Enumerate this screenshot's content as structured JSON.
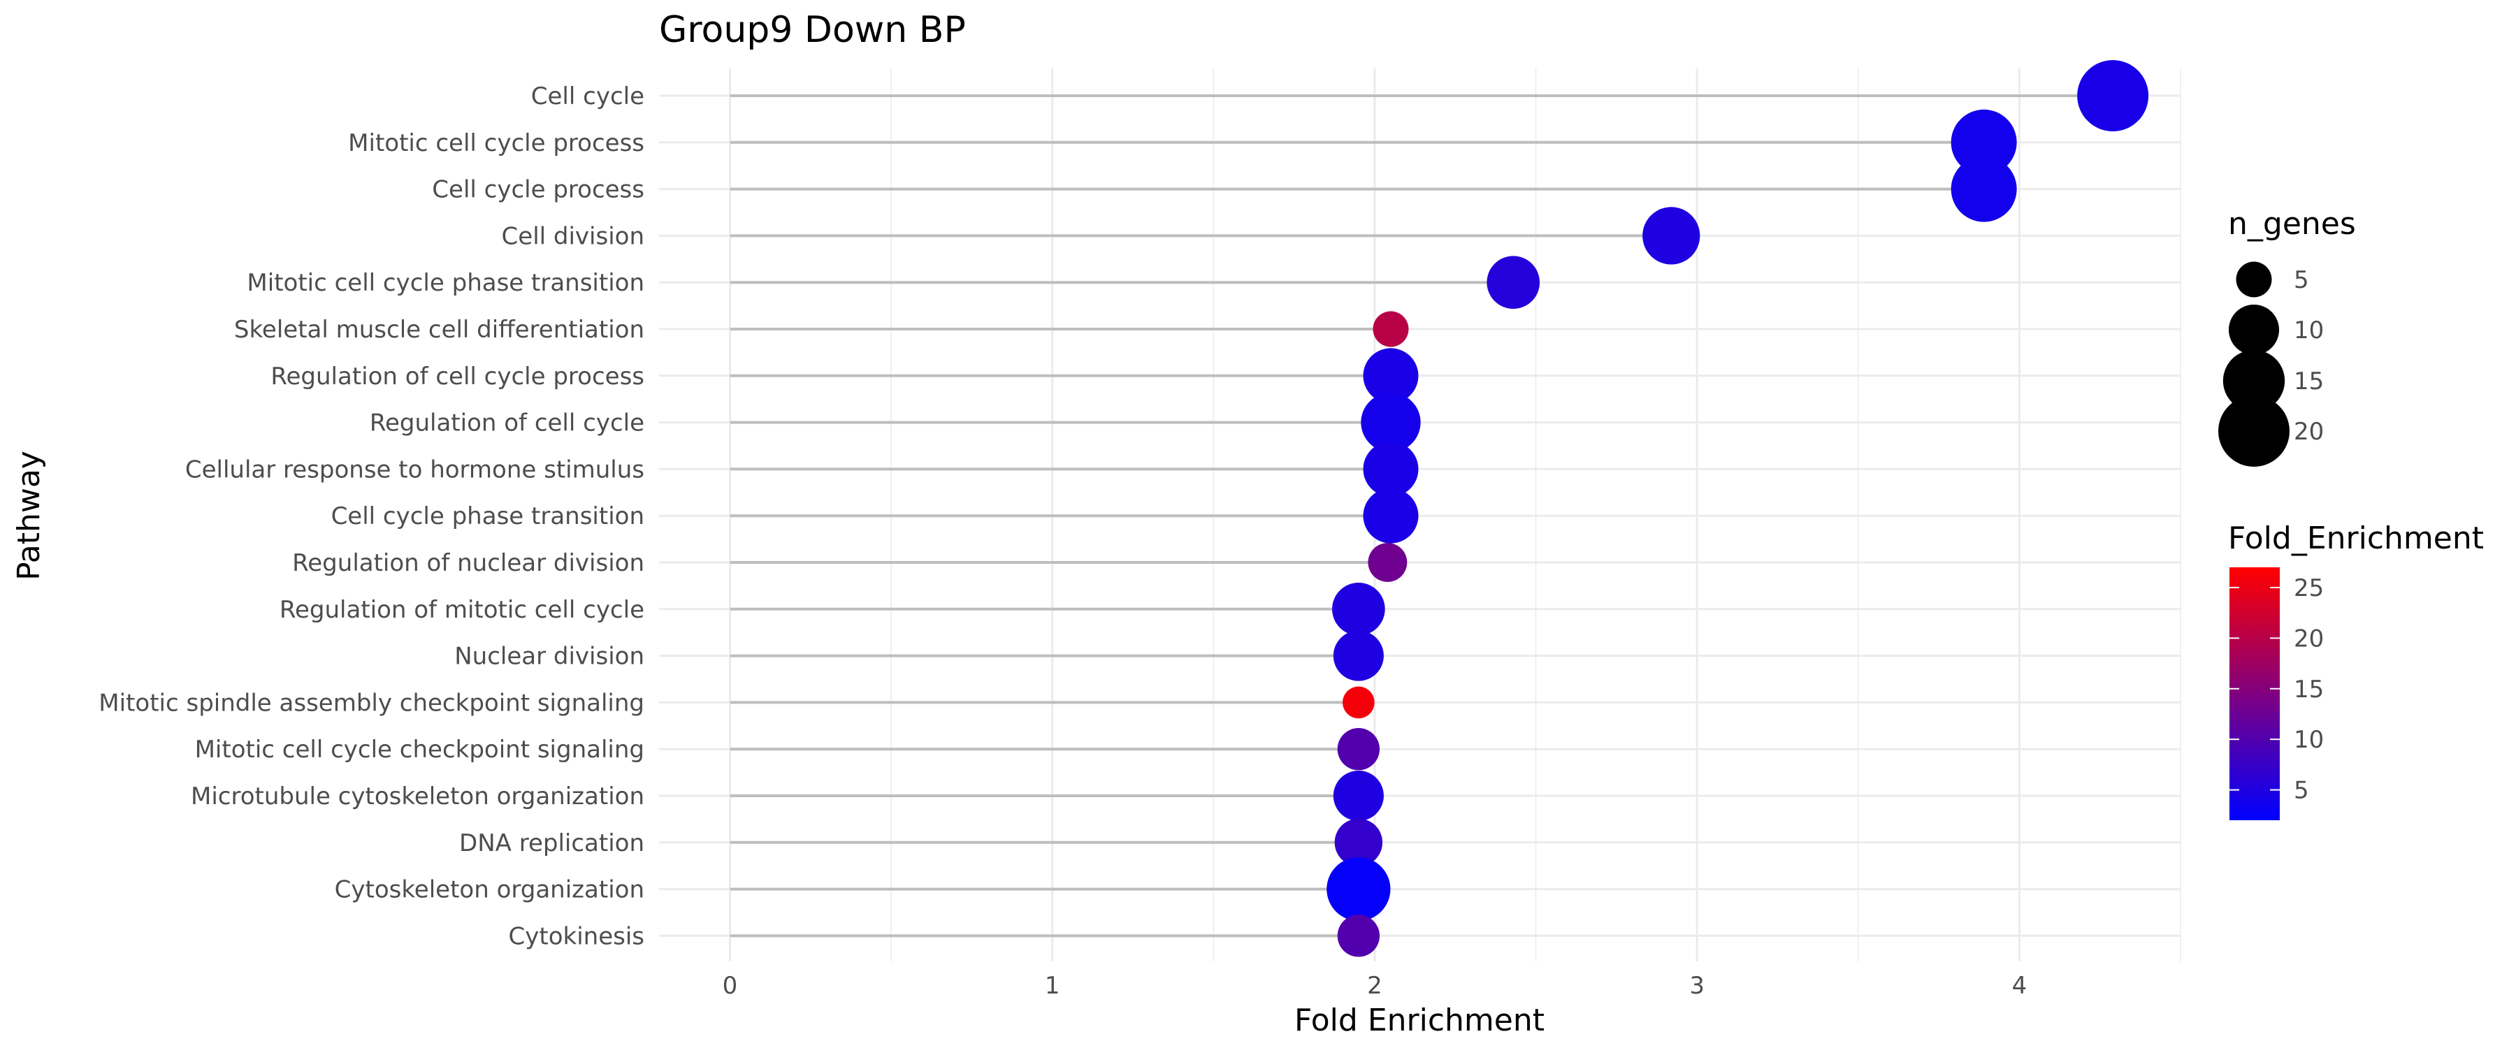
{
  "chart_data": {
    "type": "scatter",
    "subtype": "lollipop",
    "title": "Group9 Down BP",
    "xlabel": "Fold Enrichment",
    "ylabel": "Pathway",
    "xlim": [
      -0.22,
      4.5
    ],
    "x_ticks": [
      0,
      1,
      2,
      3,
      4
    ],
    "grid": true,
    "categories": [
      "Cell cycle",
      "Mitotic cell cycle process",
      "Cell cycle process",
      "Cell division",
      "Mitotic cell cycle phase transition",
      "Skeletal muscle cell differentiation",
      "Regulation of cell cycle process",
      "Regulation of cell cycle",
      "Cellular response to hormone stimulus",
      "Cell cycle phase transition",
      "Regulation of nuclear division",
      "Regulation of mitotic cell cycle",
      "Nuclear division",
      "Mitotic spindle assembly checkpoint signaling",
      "Mitotic cell cycle checkpoint signaling",
      "Microtubule cytoskeleton organization",
      "DNA replication",
      "Cytoskeleton organization",
      "Cytokinesis"
    ],
    "x": [
      4.29,
      3.89,
      3.89,
      2.92,
      2.43,
      2.05,
      2.05,
      2.05,
      2.05,
      2.05,
      2.04,
      1.95,
      1.95,
      1.95,
      1.95,
      1.95,
      1.95,
      1.95,
      1.95
    ],
    "n_genes": [
      20,
      17,
      17,
      13,
      11,
      5,
      12,
      14,
      12,
      12,
      6,
      11,
      10,
      4,
      7,
      10,
      9,
      16,
      7
    ],
    "fold_enrichment_color": [
      4.3,
      3.9,
      3.9,
      5.0,
      5.5,
      20.0,
      4.5,
      4.0,
      4.5,
      4.5,
      13.0,
      5.0,
      5.0,
      26.0,
      10.0,
      5.0,
      7.0,
      2.5,
      10.0
    ],
    "size_legend": {
      "title": "n_genes",
      "values": [
        5,
        10,
        15,
        20
      ],
      "labels": [
        "5",
        "10",
        "15",
        "20"
      ]
    },
    "color_legend": {
      "title": "Fold_Enrichment",
      "range": [
        2,
        27
      ],
      "ticks": [
        5,
        10,
        15,
        20,
        25
      ],
      "labels": [
        "5",
        "10",
        "15",
        "20",
        "25"
      ],
      "low_color": "#0000FF",
      "high_color": "#FF0000"
    },
    "legend_position": "right",
    "segment_color": "#BEBEBE",
    "grid_color": "#EBEBEB"
  }
}
